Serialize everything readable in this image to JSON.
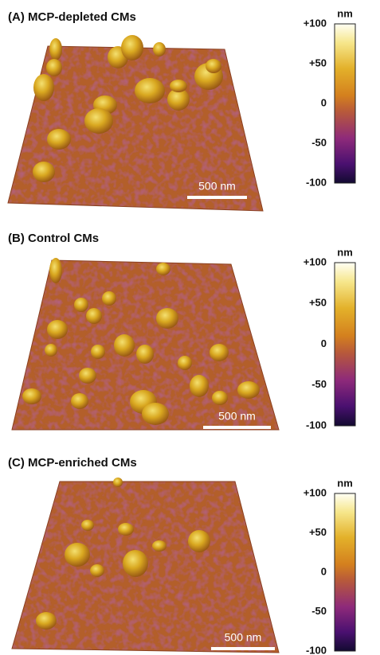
{
  "panels": [
    {
      "title": "(A) MCP-depleted CMs",
      "scale_bar": "500 nm",
      "colorbar": {
        "unit": "nm",
        "ticks": [
          "+100",
          "+50",
          "0",
          "-50",
          "-100"
        ]
      }
    },
    {
      "title": "(B) Control CMs",
      "scale_bar": "500 nm",
      "colorbar": {
        "unit": "nm",
        "ticks": [
          "+100",
          "+50",
          "0",
          "-50",
          "-100"
        ]
      }
    },
    {
      "title": "(C) MCP-enriched CMs",
      "scale_bar": "500 nm",
      "colorbar": {
        "unit": "nm",
        "ticks": [
          "+100",
          "+50",
          "0",
          "-50",
          "-100"
        ]
      }
    }
  ]
}
